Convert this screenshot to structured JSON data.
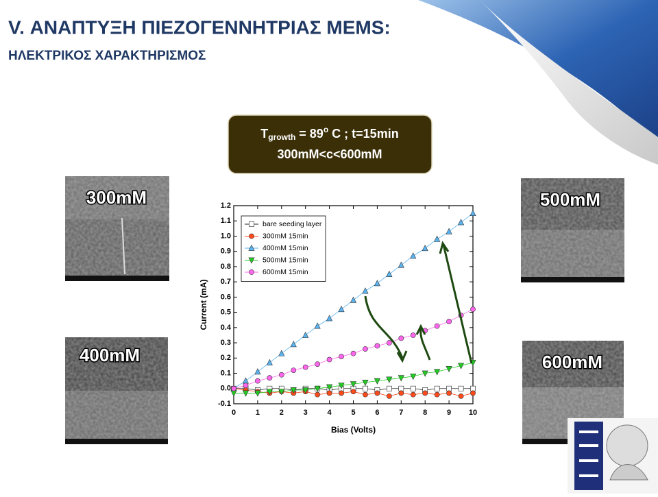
{
  "title": "V. ΑΝΑΠΤΥΞΗ ΠΙΕΖΟΓΕΝΝΗΤΡΙΑΣ MEMS:",
  "subtitle": "ΗΛΕΚΤΡΙΚΟΣ ΧΑΡΑΚΤΗΡΙΣΜΟΣ",
  "callout": {
    "t": "T",
    "sub": "growth",
    "eq": " = 89",
    "sup": "o",
    "rest": " C ; t=15min",
    "line2": "300mM<c<600mM"
  },
  "images": [
    "300mM",
    "400mM",
    "500mM",
    "600mM"
  ],
  "chart_data": {
    "type": "line",
    "x_label": "Bias (Volts)",
    "y_label": "Current (mA)",
    "x": [
      0,
      0.5,
      1,
      1.5,
      2,
      2.5,
      3,
      3.5,
      4,
      4.5,
      5,
      5.5,
      6,
      6.5,
      7,
      7.5,
      8,
      8.5,
      9,
      9.5,
      10
    ],
    "series": [
      {
        "name": "bare seeding layer",
        "color": "#222222",
        "marker": "square",
        "values": [
          0,
          0,
          -0.01,
          0,
          0,
          -0.01,
          0,
          0,
          -0.01,
          0,
          0,
          0,
          -0.01,
          0,
          0,
          0,
          -0.01,
          0,
          0,
          0,
          0
        ]
      },
      {
        "name": "300mM 15min",
        "color": "#ff4a1a",
        "marker": "circle",
        "values": [
          0,
          -0.01,
          -0.02,
          -0.03,
          -0.02,
          -0.03,
          -0.02,
          -0.04,
          -0.03,
          -0.03,
          -0.02,
          -0.04,
          -0.03,
          -0.05,
          -0.03,
          -0.04,
          -0.03,
          -0.04,
          -0.03,
          -0.05,
          -0.03
        ]
      },
      {
        "name": "400mM 15min",
        "color": "#5ab4f0",
        "marker": "triangle-up",
        "values": [
          0,
          0.05,
          0.11,
          0.17,
          0.23,
          0.29,
          0.35,
          0.41,
          0.46,
          0.52,
          0.58,
          0.64,
          0.69,
          0.75,
          0.81,
          0.87,
          0.92,
          0.98,
          1.03,
          1.09,
          1.15
        ]
      },
      {
        "name": "500mM 15min",
        "color": "#22cc22",
        "marker": "triangle-down",
        "values": [
          -0.03,
          -0.03,
          -0.03,
          -0.02,
          -0.02,
          -0.01,
          -0.01,
          0,
          0.01,
          0.02,
          0.03,
          0.04,
          0.05,
          0.06,
          0.07,
          0.08,
          0.1,
          0.11,
          0.13,
          0.15,
          0.17
        ]
      },
      {
        "name": "600mM 15min",
        "color": "#ff66ee",
        "marker": "circle",
        "values": [
          0,
          0.02,
          0.05,
          0.07,
          0.09,
          0.12,
          0.14,
          0.16,
          0.19,
          0.21,
          0.23,
          0.26,
          0.28,
          0.3,
          0.33,
          0.35,
          0.38,
          0.41,
          0.44,
          0.48,
          0.52
        ]
      }
    ],
    "xlim": [
      0,
      10
    ],
    "xticks": [
      0,
      1,
      2,
      3,
      4,
      5,
      6,
      7,
      8,
      9,
      10
    ],
    "ylim": [
      -0.1,
      1.2
    ],
    "yticks": [
      -0.1,
      {
        "value": 0,
        "label": "0.0"
      },
      0.1,
      0.2,
      0.3,
      0.4,
      0.5,
      0.6,
      0.7,
      0.8,
      0.9,
      {
        "value": 1,
        "label": "1.0"
      },
      1.1,
      1.2
    ],
    "legend": "upper-left"
  }
}
